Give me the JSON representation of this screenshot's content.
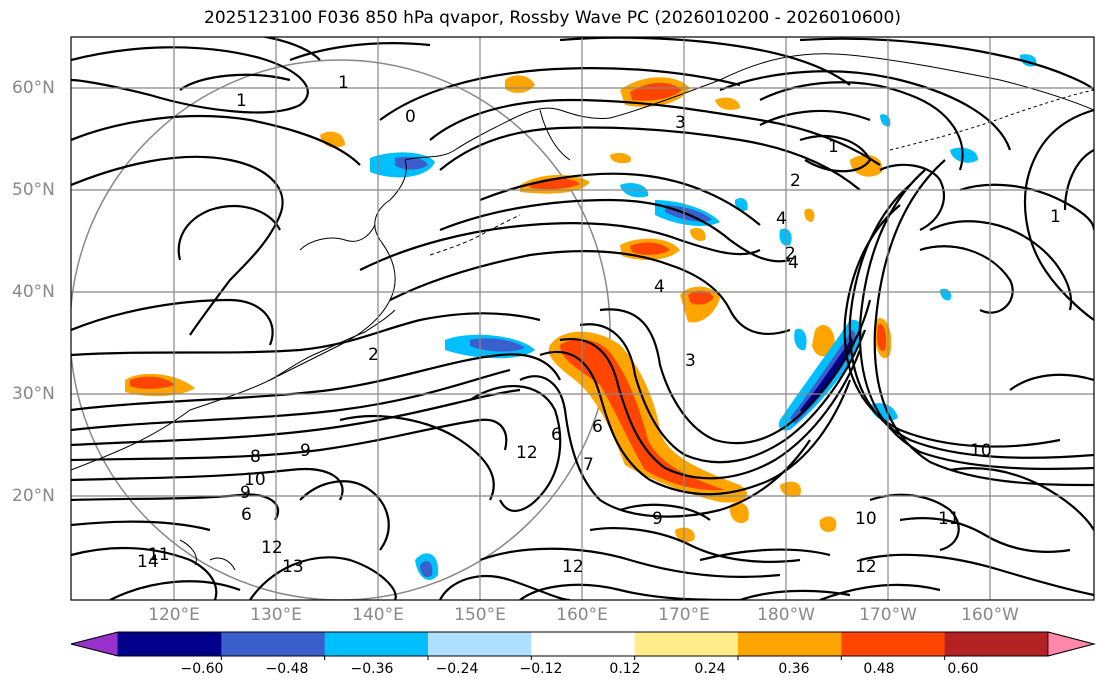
{
  "title": "2025123100 F036 850 hPa qvapor, Rossby Wave PC (2026010200 - 2026010600)",
  "map": {
    "lat_ticks": [
      "60°N",
      "50°N",
      "40°N",
      "30°N",
      "20°N"
    ],
    "lon_ticks": [
      "120°E",
      "130°E",
      "140°E",
      "150°E",
      "160°E",
      "170°E",
      "180°W",
      "170°W",
      "160°W"
    ],
    "contour_labels": [
      "0",
      "1",
      "1",
      "1",
      "1",
      "2",
      "2",
      "2",
      "3",
      "3",
      "4",
      "4",
      "4",
      "6",
      "6",
      "6",
      "7",
      "8",
      "9",
      "9",
      "9",
      "10",
      "10",
      "10",
      "11",
      "11",
      "12",
      "12",
      "12",
      "12",
      "13",
      "14"
    ]
  },
  "colorbar": {
    "colors": [
      "#9932cc",
      "#00008b",
      "#3a5fcd",
      "#00bfff",
      "#b0e0ff",
      "#ffffff",
      "#ffec8b",
      "#ffa500",
      "#ff4500",
      "#b22222",
      "#ff88aa"
    ],
    "tick_labels": [
      "−0.60",
      "−0.48",
      "−0.36",
      "−0.24",
      "−0.12",
      "0.12",
      "0.24",
      "0.36",
      "0.48",
      "0.60"
    ]
  }
}
